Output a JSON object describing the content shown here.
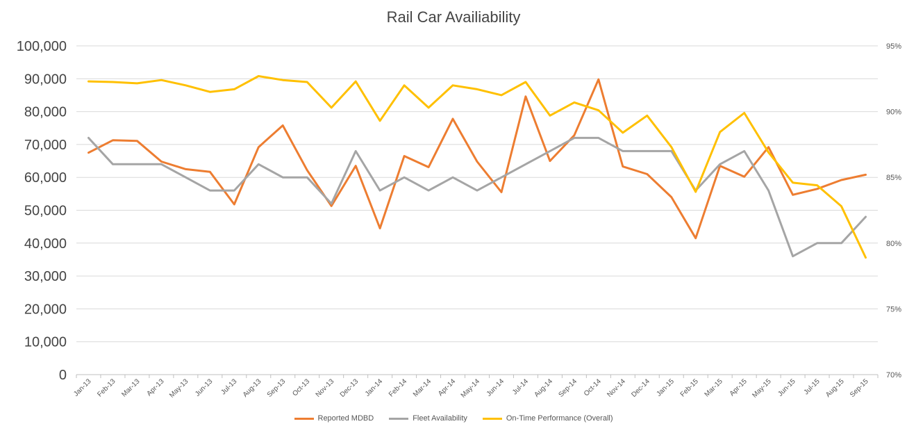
{
  "chart_data": {
    "type": "line",
    "title": "Rail Car Availiability",
    "xlabel": "",
    "ylabel": "",
    "categories": [
      "Jan-13",
      "Feb-13",
      "Mar-13",
      "Apr-13",
      "May-13",
      "Jun-13",
      "Jul-13",
      "Aug-13",
      "Sep-13",
      "Oct-13",
      "Nov-13",
      "Dec-13",
      "Jan-14",
      "Feb-14",
      "Mar-14",
      "Apr-14",
      "May-14",
      "Jun-14",
      "Jul-14",
      "Aug-14",
      "Sep-14",
      "Oct-14",
      "Nov-14",
      "Dec-14",
      "Jan-15",
      "Feb-15",
      "Mar-15",
      "Apr-15",
      "May-15",
      "Jun-15",
      "Jul-15",
      "Aug-15",
      "Sep-15"
    ],
    "ylim_left": [
      0,
      100000
    ],
    "ylim_right": [
      70,
      95
    ],
    "y_ticks_left": [
      "0",
      "10,000",
      "20,000",
      "30,000",
      "40,000",
      "50,000",
      "60,000",
      "70,000",
      "80,000",
      "90,000",
      "100,000"
    ],
    "y_ticks_right": [
      "70%",
      "75%",
      "80%",
      "85%",
      "90%",
      "95%"
    ],
    "grid": true,
    "legend_position": "bottom",
    "series": [
      {
        "name": "Reported MDBD",
        "axis": "left",
        "color": "#ED7D31",
        "values": [
          67500,
          71300,
          71100,
          64800,
          62500,
          61700,
          51800,
          69200,
          75800,
          62200,
          51300,
          63500,
          44500,
          66500,
          63100,
          77800,
          64800,
          55500,
          84600,
          65000,
          72800,
          89800,
          63300,
          61000,
          54000,
          41500,
          63500,
          60200,
          69200,
          54700,
          56500,
          59200,
          60800
        ]
      },
      {
        "name": "Fleet Availability",
        "axis": "left",
        "color": "#A5A5A5",
        "values": [
          72000,
          64000,
          64000,
          64000,
          60000,
          56000,
          56000,
          64000,
          60000,
          60000,
          52000,
          68000,
          56000,
          60000,
          56000,
          60000,
          56000,
          60000,
          64000,
          68000,
          72000,
          72000,
          68000,
          68000,
          68000,
          56000,
          64000,
          68000,
          56000,
          36000,
          40000,
          40000,
          48000
        ]
      },
      {
        "name": "On-Time Performance (Overall)",
        "axis": "right",
        "color": "#FFC000",
        "values": [
          92.3,
          92.25,
          92.15,
          92.4,
          92.0,
          91.5,
          91.7,
          92.7,
          92.4,
          92.25,
          90.3,
          92.3,
          89.3,
          92.0,
          90.3,
          92.0,
          91.7,
          91.25,
          92.25,
          89.7,
          90.7,
          90.1,
          88.4,
          89.7,
          87.3,
          83.9,
          88.45,
          89.9,
          86.9,
          84.6,
          84.4,
          82.8,
          78.9
        ]
      }
    ]
  },
  "legend": {
    "items": [
      {
        "label": "Reported MDBD",
        "color": "#ED7D31"
      },
      {
        "label": "Fleet Availability",
        "color": "#A5A5A5"
      },
      {
        "label": "On-Time Performance (Overall)",
        "color": "#FFC000"
      }
    ]
  }
}
